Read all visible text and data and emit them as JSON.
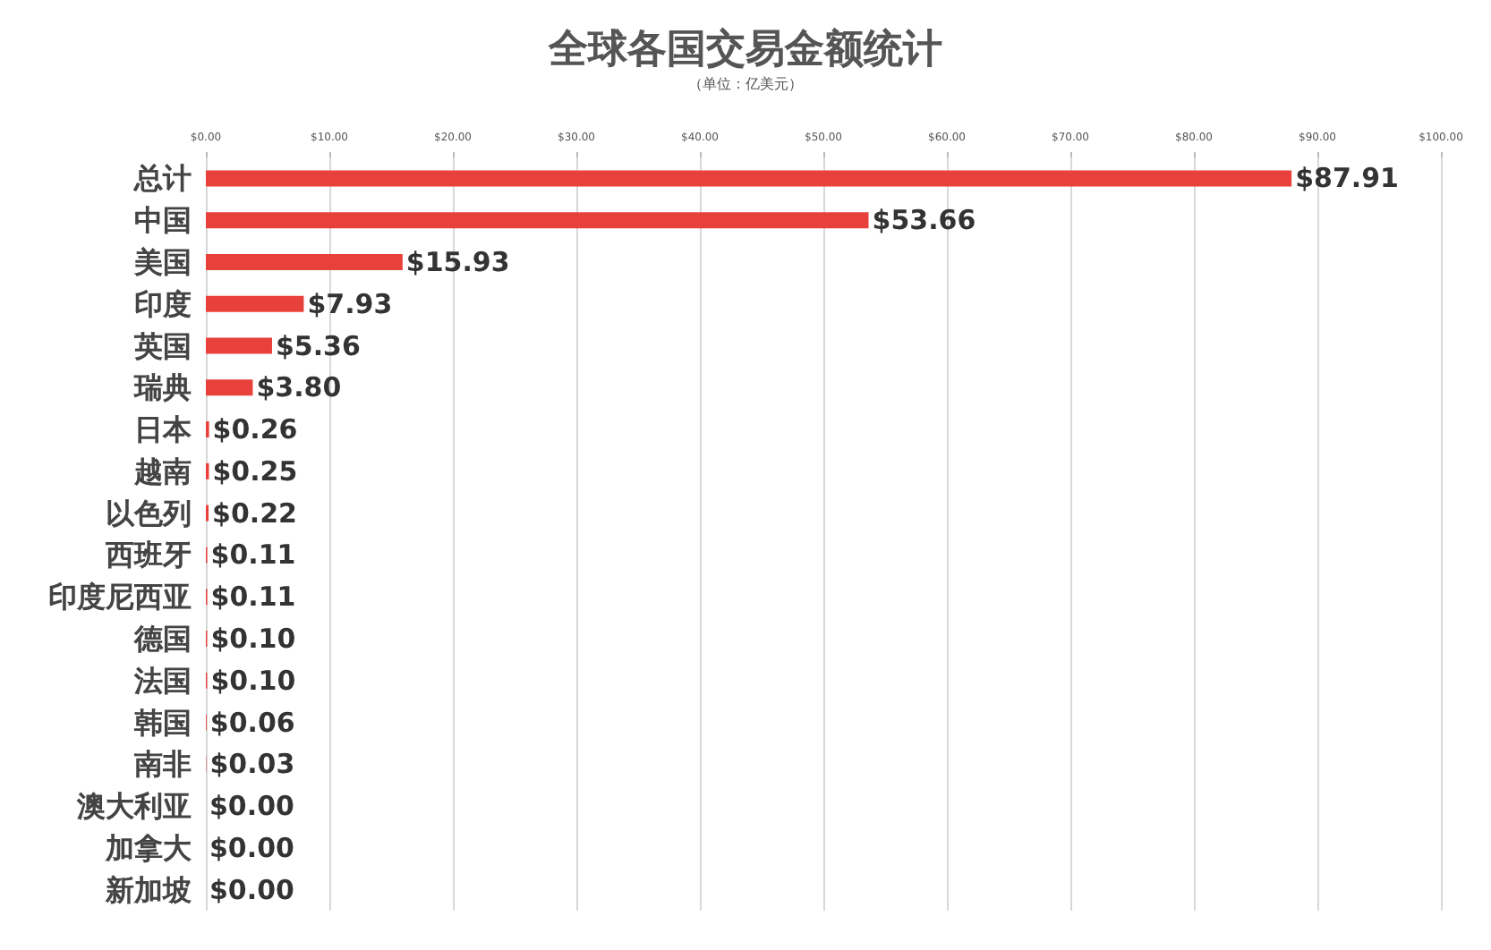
{
  "chart_data": {
    "type": "bar",
    "orientation": "horizontal",
    "title": "全球各国交易金额统计",
    "subtitle": "（单位：亿美元）",
    "categories": [
      "总计",
      "中国",
      "美国",
      "印度",
      "英国",
      "瑞典",
      "日本",
      "越南",
      "以色列",
      "西班牙",
      "印度尼西亚",
      "德国",
      "法国",
      "韩国",
      "南非",
      "澳大利亚",
      "加拿大",
      "新加坡"
    ],
    "values": [
      87.91,
      53.66,
      15.93,
      7.93,
      5.36,
      3.8,
      0.26,
      0.25,
      0.22,
      0.11,
      0.11,
      0.1,
      0.1,
      0.06,
      0.03,
      0,
      0,
      0
    ],
    "value_labels": [
      "$87.91",
      "$53.66",
      "$15.93",
      "$7.93",
      "$5.36",
      "$3.80",
      "$0.26",
      "$0.25",
      "$0.22",
      "$0.11",
      "$0.11",
      "$0.10",
      "$0.10",
      "$0.06",
      "$0.03",
      "$0.00",
      "$0.00",
      "$0.00"
    ],
    "color": "#e8403a",
    "xlim": [
      0,
      100
    ],
    "xticks": [
      {
        "value": 0,
        "label": "$0.00"
      },
      {
        "value": 10,
        "label": "$10.00"
      },
      {
        "value": 20,
        "label": "$20.00"
      },
      {
        "value": 30,
        "label": "$30.00"
      },
      {
        "value": 40,
        "label": "$40.00"
      },
      {
        "value": 50,
        "label": "$50.00"
      },
      {
        "value": 60,
        "label": "$60.00"
      },
      {
        "value": 70,
        "label": "$70.00"
      },
      {
        "value": 80,
        "label": "$80.00"
      },
      {
        "value": 90,
        "label": "$90.00"
      },
      {
        "value": 100,
        "label": "$100.00"
      }
    ],
    "grid": "x"
  }
}
